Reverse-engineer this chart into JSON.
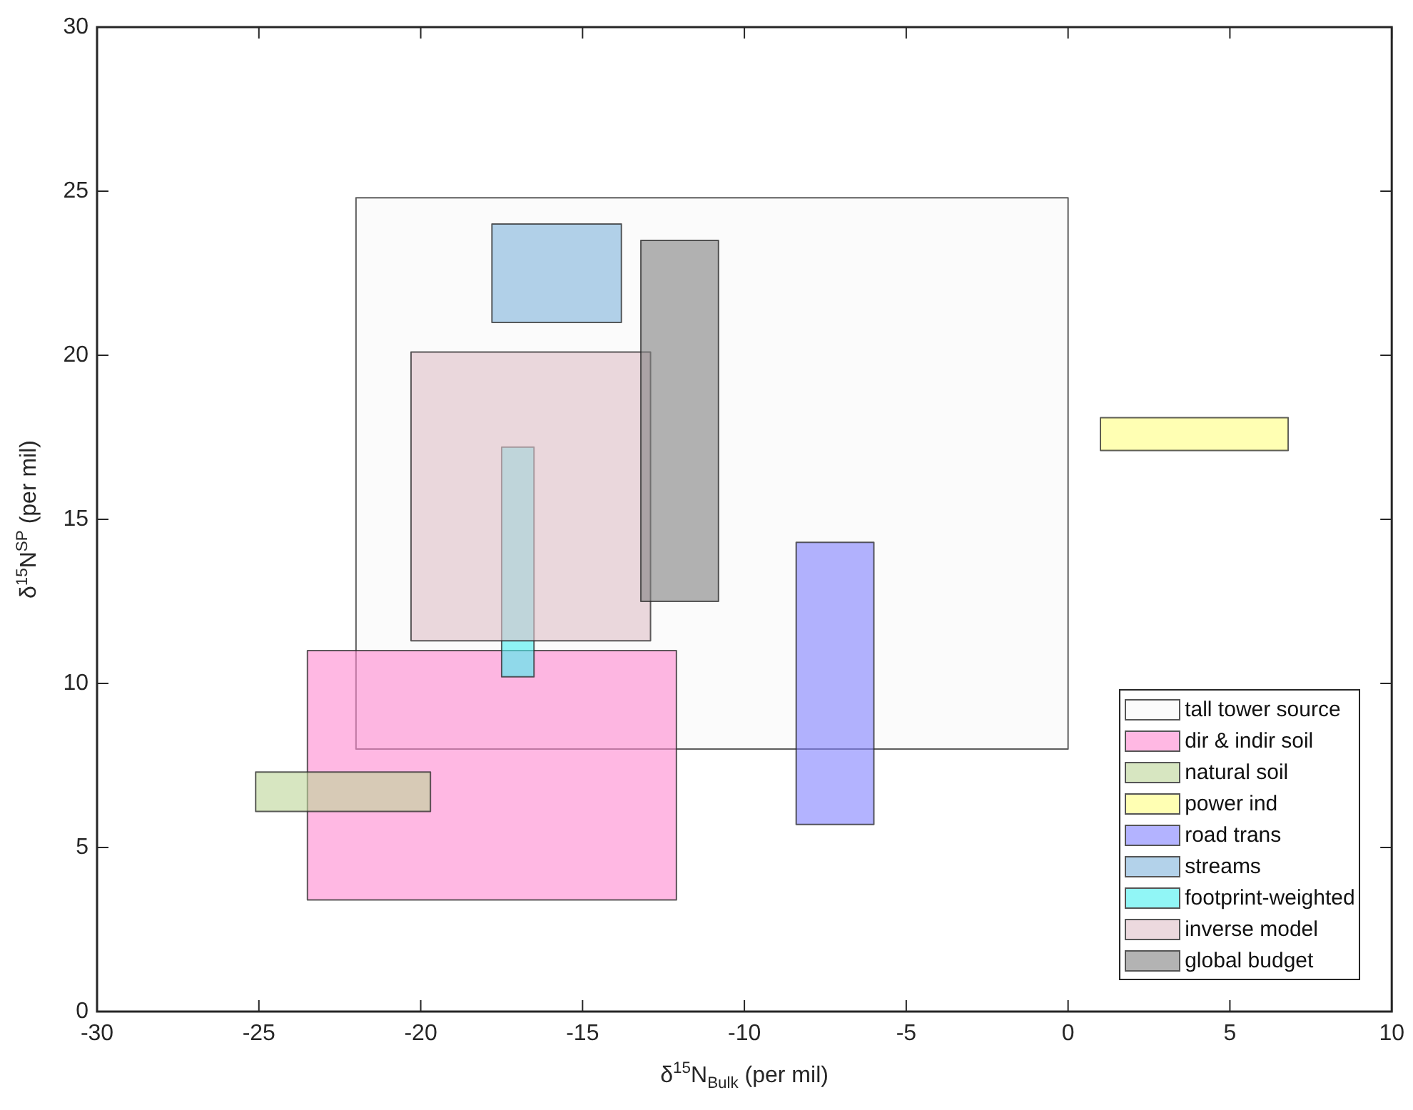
{
  "chart_data": {
    "type": "area",
    "xlabel": "δ$^{15}$N$_{Bulk}$ (per mil)",
    "ylabel": "δ$^{15}$N$^{SP}$ (per mil)",
    "xlim": [
      -30,
      10
    ],
    "xticks": [
      -30,
      -25,
      -20,
      -15,
      -10,
      -5,
      0,
      5,
      10
    ],
    "ylim": [
      0,
      30
    ],
    "yticks": [
      0,
      5,
      10,
      15,
      20,
      25,
      30
    ],
    "grid": false,
    "legend": "bottom right",
    "series": [
      {
        "name": "tall tower source",
        "color": "#f9f9f9",
        "x": [
          -22,
          0,
          0,
          -22,
          -22
        ],
        "values": [
          8.0,
          8.0,
          24.8,
          24.8,
          8.0
        ]
      },
      {
        "name": "dir & indir soil",
        "color": "#ff88d0",
        "x": [
          -23.5,
          -12.1,
          -12.1,
          -23.5,
          -23.5
        ],
        "values": [
          3.4,
          3.4,
          11.0,
          11.0,
          3.4
        ]
      },
      {
        "name": "natural soil",
        "color": "#bcd597",
        "x": [
          -25.1,
          -19.7,
          -19.7,
          -25.1,
          -25.1
        ],
        "values": [
          6.1,
          6.1,
          7.3,
          7.3,
          6.1
        ]
      },
      {
        "name": "power ind",
        "color": "#ffff80",
        "x": [
          1.0,
          6.8,
          6.8,
          1.0,
          1.0
        ],
        "values": [
          17.1,
          17.1,
          18.1,
          18.1,
          17.1
        ]
      },
      {
        "name": "road trans",
        "color": "#8080ff",
        "x": [
          -8.4,
          -6.0,
          -6.0,
          -8.4,
          -8.4
        ],
        "values": [
          5.7,
          5.7,
          14.3,
          14.3,
          5.7
        ]
      },
      {
        "name": "streams",
        "color": "#80b4dc",
        "x": [
          -17.8,
          -13.8,
          -13.8,
          -17.8,
          -17.8
        ],
        "values": [
          21.0,
          21.0,
          24.0,
          24.0,
          21.0
        ]
      },
      {
        "name": "footprint-weighted",
        "color": "#48f0f0",
        "x": [
          -17.5,
          -16.5,
          -16.5,
          -17.5,
          -17.5
        ],
        "values": [
          10.2,
          10.2,
          17.2,
          17.2,
          10.2
        ]
      },
      {
        "name": "inverse model",
        "color": "#e0c0c8",
        "x": [
          -20.3,
          -12.9,
          -12.9,
          -20.3,
          -20.3
        ],
        "values": [
          11.3,
          11.3,
          20.1,
          20.1,
          11.3
        ]
      },
      {
        "name": "global budget",
        "color": "#808080",
        "x": [
          -13.2,
          -10.8,
          -10.8,
          -13.2,
          -13.2
        ],
        "values": [
          12.5,
          12.5,
          23.5,
          23.5,
          12.5
        ]
      }
    ]
  }
}
